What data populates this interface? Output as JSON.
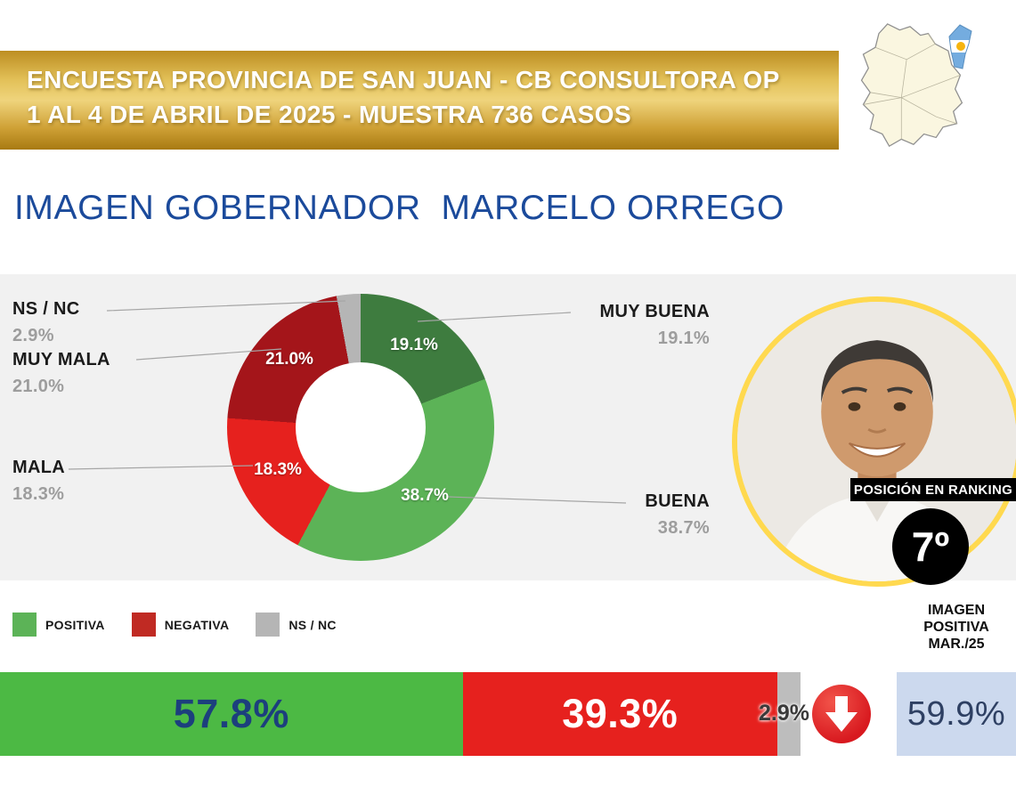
{
  "header": {
    "line1": "ENCUESTA PROVINCIA DE SAN JUAN - CB CONSULTORA OP",
    "line2": "1 AL 4 DE ABRIL DE 2025 - MUESTRA 736 CASOS"
  },
  "page_title": "IMAGEN GOBERNADOR  MARCELO ORREGO",
  "chart_data": {
    "type": "pie",
    "donut": true,
    "title": "IMAGEN GOBERNADOR MARCELO ORREGO",
    "slices": [
      {
        "label": "MUY BUENA",
        "value": 19.1,
        "display": "19.1%",
        "color": "#3e7c3f"
      },
      {
        "label": "BUENA",
        "value": 38.7,
        "display": "38.7%",
        "color": "#5cb357"
      },
      {
        "label": "MALA",
        "value": 18.3,
        "display": "18.3%",
        "color": "#e6211e"
      },
      {
        "label": "MUY MALA",
        "value": 21.0,
        "display": "21.0%",
        "color": "#a4151a"
      },
      {
        "label": "NS / NC",
        "value": 2.9,
        "display": "2.9%",
        "color": "#b5b5b5"
      }
    ],
    "callouts": {
      "left": [
        {
          "label": "NS / NC",
          "pct": "2.9%"
        },
        {
          "label": "MUY MALA",
          "pct": "21.0%"
        },
        {
          "label": "MALA",
          "pct": "18.3%"
        }
      ],
      "right": [
        {
          "label": "MUY BUENA",
          "pct": "19.1%"
        },
        {
          "label": "BUENA",
          "pct": "38.7%"
        }
      ]
    },
    "legend": [
      {
        "label": "POSITIVA",
        "color": "#5cb357"
      },
      {
        "label": "NEGATIVA",
        "color": "#c02a23"
      },
      {
        "label": "NS / NC",
        "color": "#b5b5b5"
      }
    ],
    "summary_bar": {
      "type": "bar",
      "segments": [
        {
          "label": "POSITIVA",
          "value": 57.8,
          "display": "57.8%",
          "color": "#4cb944"
        },
        {
          "label": "NEGATIVA",
          "value": 39.3,
          "display": "39.3%",
          "color": "#e6211e"
        },
        {
          "label": "NS / NC",
          "value": 2.9,
          "display": "2.9%",
          "color": "#bdbdbd"
        }
      ]
    }
  },
  "ranking": {
    "banner": "POSICIÓN EN RANKING",
    "position": "7º",
    "caption_lines": [
      "IMAGEN",
      "POSITIVA",
      "MAR./25"
    ],
    "value": "59.9%"
  }
}
